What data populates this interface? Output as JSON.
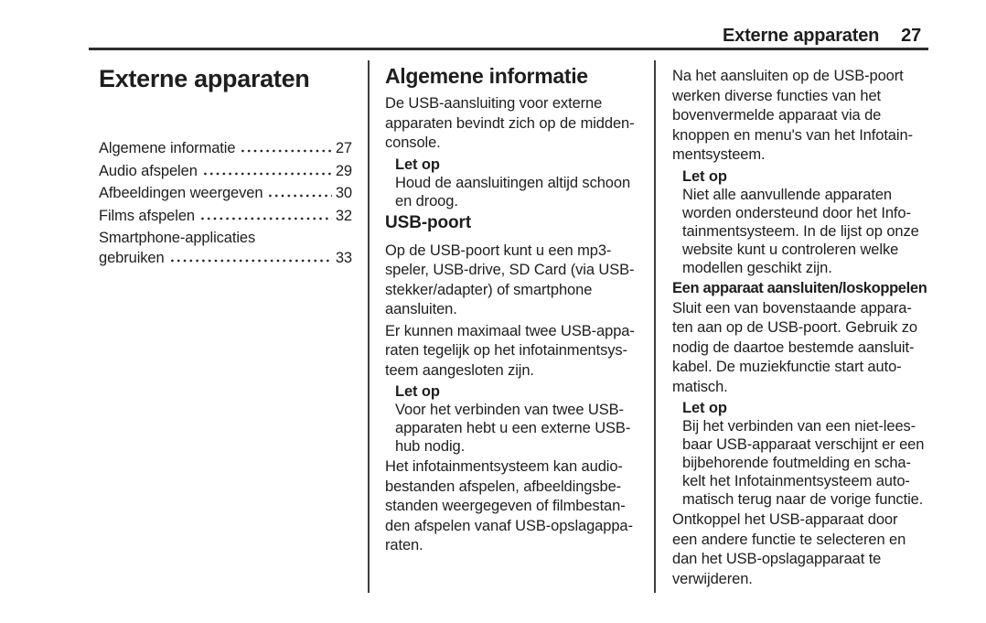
{
  "header": {
    "title": "Externe apparaten",
    "page_number": "27"
  },
  "left": {
    "chapter_title": "Externe apparaten",
    "toc": [
      {
        "label": "Algemene informatie",
        "page": "27"
      },
      {
        "label": "Audio afspelen",
        "page": "29"
      },
      {
        "label": "Afbeeldingen weergeven",
        "page": "30"
      },
      {
        "label": "Films afspelen",
        "page": "32"
      },
      {
        "line1": "Smartphone-applicaties",
        "label": "gebruiken",
        "page": "33"
      }
    ]
  },
  "middle": {
    "heading": "Algemene informatie",
    "p1": "De USB-aansluiting voor externe\napparaten bevindt zich op de midden-\nconsole.",
    "note1": {
      "title": "Let op",
      "body": "Houd de aansluitingen altijd schoon\nen droog."
    },
    "subheading": "USB-poort",
    "p2": "Op de USB-poort kunt u een mp3-\nspeler, USB-drive, SD Card (via USB-\nstekker/adapter) of smartphone\naansluiten.",
    "p3": "Er kunnen maximaal twee USB-appa-\nraten tegelijk op het infotainmentsys-\nteem aangesloten zijn.",
    "note2": {
      "title": "Let op",
      "body": "Voor het verbinden van twee USB-\napparaten hebt u een externe USB-\nhub nodig."
    },
    "p4": "Het infotainmentsysteem kan audio-\nbestanden afspelen, afbeeldingsbe-\nstanden weergegeven of filmbestan-\nden afspelen vanaf USB-opslagappa-\nraten."
  },
  "right": {
    "p1": "Na het aansluiten op de USB-poort\nwerken diverse functies van het\nbovenvermelde apparaat via de\nknoppen en menu's van het Infotain-\nmentsysteem.",
    "note1": {
      "title": "Let op",
      "body": "Niet alle aanvullende apparaten\nworden ondersteund door het Info-\ntainmentsysteem. In de lijst op onze\nwebsite kunt u controleren welke\nmodellen geschikt zijn."
    },
    "subheading": "Een apparaat aansluiten/loskoppelen",
    "p2": "Sluit een van bovenstaande appara-\nten aan op de USB-poort. Gebruik zo\nnodig de daartoe bestemde aansluit-\nkabel. De muziekfunctie start auto-\nmatisch.",
    "note2": {
      "title": "Let op",
      "body": "Bij het verbinden van een niet-lees-\nbaar USB-apparaat verschijnt er een\nbijbehorende foutmelding en scha-\nkelt het Infotainmentsysteem auto-\nmatisch terug naar de vorige functie."
    },
    "p3": "Ontkoppel het USB-apparaat door\neen andere functie te selecteren en\ndan het USB-opslagapparaat te\nverwijderen."
  },
  "colors": {
    "text": "#1e1e1e",
    "rule": "#2e2e2e",
    "background": "#ffffff"
  }
}
